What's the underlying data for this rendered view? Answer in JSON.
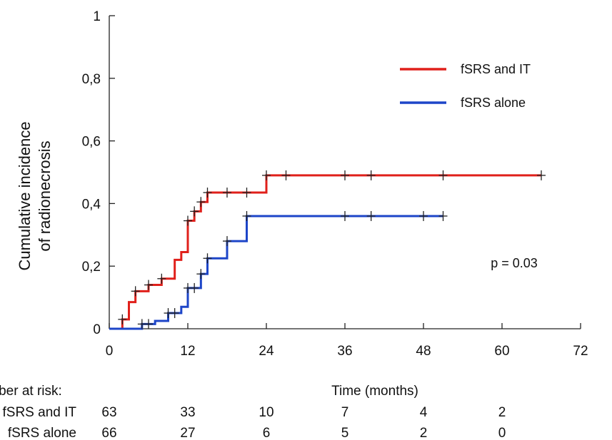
{
  "chart_data": {
    "type": "line",
    "xlabel": "Time (months)",
    "ylabel": [
      "Cumulative incidence",
      "of radionecrosis"
    ],
    "xlim": [
      0,
      72
    ],
    "ylim": [
      0,
      1
    ],
    "x_ticks": [
      0,
      12,
      24,
      36,
      48,
      60,
      72
    ],
    "x_tick_labels": [
      "0",
      "12",
      "24",
      "36",
      "48",
      "60",
      "72"
    ],
    "y_ticks": [
      0,
      0.2,
      0.4,
      0.6,
      0.8,
      1
    ],
    "y_tick_labels": [
      "0",
      "0,2",
      "0,4",
      "0,6",
      "0,8",
      "1"
    ],
    "grid": false,
    "legend_position": "top-right",
    "annotation": "p = 0.03",
    "series": [
      {
        "name": "fSRS and IT",
        "color": "#e0201b",
        "steps": [
          [
            0,
            0
          ],
          [
            2,
            0.03
          ],
          [
            3,
            0.085
          ],
          [
            4,
            0.12
          ],
          [
            6,
            0.14
          ],
          [
            8,
            0.16
          ],
          [
            10,
            0.22
          ],
          [
            11,
            0.245
          ],
          [
            12,
            0.345
          ],
          [
            13,
            0.375
          ],
          [
            14,
            0.405
          ],
          [
            15,
            0.435
          ],
          [
            24,
            0.49
          ],
          [
            66,
            0.49
          ]
        ],
        "censored_x": [
          2,
          4,
          6,
          8,
          12,
          13,
          14,
          15,
          18,
          21,
          24,
          27,
          36,
          40,
          51,
          66
        ]
      },
      {
        "name": "fSRS alone",
        "color": "#1d45c8",
        "steps": [
          [
            0,
            0
          ],
          [
            5,
            0.015
          ],
          [
            7,
            0.025
          ],
          [
            9,
            0.05
          ],
          [
            11,
            0.07
          ],
          [
            12,
            0.13
          ],
          [
            14,
            0.175
          ],
          [
            15,
            0.225
          ],
          [
            18,
            0.28
          ],
          [
            21,
            0.36
          ],
          [
            51,
            0.36
          ]
        ],
        "censored_x": [
          5,
          6,
          9,
          10,
          12,
          13,
          14,
          15,
          18,
          21,
          36,
          40,
          48,
          51
        ]
      }
    ],
    "risk_table": {
      "title": "Number at risk:",
      "rows": [
        {
          "label": "fSRS and IT",
          "values": [
            "63",
            "33",
            "10",
            "7",
            "4",
            "2"
          ]
        },
        {
          "label": "fSRS alone",
          "values": [
            "66",
            "27",
            "6",
            "5",
            "2",
            "0"
          ]
        }
      ]
    }
  }
}
